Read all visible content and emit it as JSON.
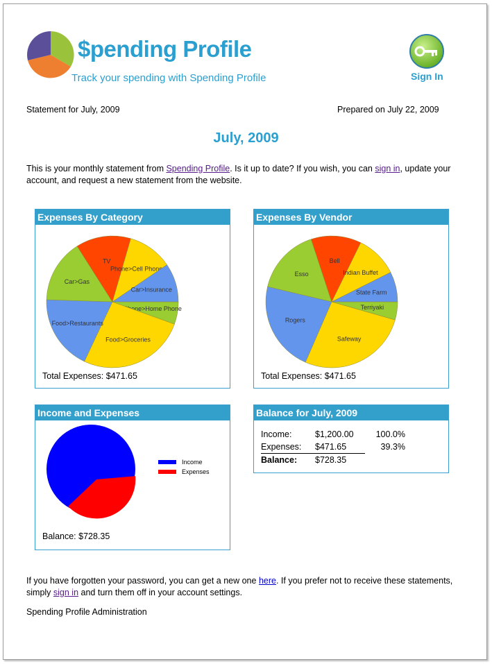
{
  "header": {
    "logo_title": "$pending Profile",
    "tagline": "Track your spending with Spending Profile",
    "sign_in_label": "Sign In"
  },
  "statement": {
    "statement_for": "Statement for July, 2009",
    "prepared_on": "Prepared on July 22, 2009",
    "month_title": "July, 2009"
  },
  "intro": {
    "part1": "This is your monthly statement from ",
    "link1": "Spending Profile",
    "part2": ". Is it up to date? If you wish, you can ",
    "link2": "sign in",
    "part3": ", update your account, and request a new statement from the website."
  },
  "panels": {
    "category_title": "Expenses By Category",
    "category_total": "Total Expenses: $471.65",
    "vendor_title": "Expenses By Vendor",
    "vendor_total": "Total Expenses: $471.65",
    "income_title": "Income and Expenses",
    "income_balance": "Balance: $728.35",
    "balance_title": "Balance for July, 2009"
  },
  "balance_table": {
    "rows": [
      {
        "label": "Income:",
        "amount": "$1,200.00",
        "pct": "100.0%"
      },
      {
        "label": "Expenses:",
        "amount": "$471.65",
        "pct": "39.3%"
      },
      {
        "label": "Balance:",
        "amount": "$728.35",
        "pct": ""
      }
    ]
  },
  "footer": {
    "part1": "If you have forgotten your password, you can get a new one ",
    "link1": "here",
    "part2": ". If you prefer not to receive these statements, simply ",
    "link2": "sign in",
    "part3": " and turn them off in your account settings.",
    "signature": "Spending Profile Administration"
  },
  "colors": {
    "accent": "#2a9fd0",
    "panel_header": "#33a0cc",
    "slice_green": "#9acd32",
    "slice_yellow": "#ffd700",
    "slice_blue": "#6495ed",
    "slice_red": "#ff4500",
    "income_blue": "#0000ff",
    "expenses_red": "#ff0000"
  },
  "chart_data": [
    {
      "type": "pie",
      "title": "Expenses By Category",
      "slices": [
        {
          "label": "Phone>Home Phone",
          "color": "#9acd32",
          "value": 5.5
        },
        {
          "label": "Food>Groceries",
          "color": "#ffd700",
          "value": 26.5
        },
        {
          "label": "Food>Restaurants",
          "color": "#6495ed",
          "value": 18.5
        },
        {
          "label": "Car>Gas",
          "color": "#9acd32",
          "value": 15.5
        },
        {
          "label": "TV",
          "color": "#ff4500",
          "value": 13.5
        },
        {
          "label": "Phone>Cell Phone",
          "color": "#ffd700",
          "value": 11
        },
        {
          "label": "Car>Insurance",
          "color": "#6495ed",
          "value": 9.5
        }
      ]
    },
    {
      "type": "pie",
      "title": "Expenses By Vendor",
      "slices": [
        {
          "label": "Terriyaki",
          "color": "#9acd32",
          "value": 4.5
        },
        {
          "label": "Safeway",
          "color": "#ffd700",
          "value": 27.5
        },
        {
          "label": "Rogers",
          "color": "#6495ed",
          "value": 22.5
        },
        {
          "label": "Esso",
          "color": "#9acd32",
          "value": 16.5
        },
        {
          "label": "Bell",
          "color": "#ff4500",
          "value": 12.5
        },
        {
          "label": "Indian Buffet",
          "color": "#ffd700",
          "value": 10.5
        },
        {
          "label": "State Farm",
          "color": "#6495ed",
          "value": 7.5
        }
      ]
    },
    {
      "type": "pie",
      "title": "Income and Expenses",
      "slices": [
        {
          "label": "Income",
          "color": "#0000ff",
          "value": 1200.0
        },
        {
          "label": "Expenses",
          "color": "#ff0000",
          "value": 471.65
        }
      ]
    }
  ]
}
